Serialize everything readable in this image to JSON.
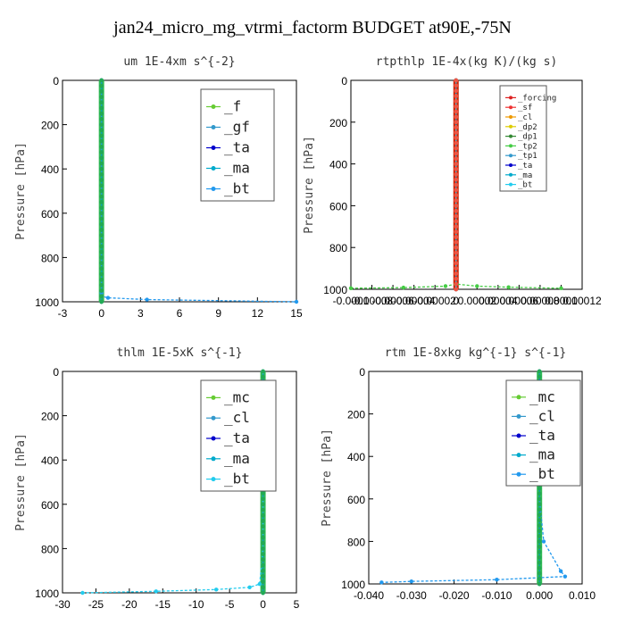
{
  "title": "jan24_micro_mg_vtrmi_factorm  BUDGET at90E,-75N",
  "chart_data": [
    {
      "type": "line",
      "title": "um  1E-4xm s^{-2}",
      "ylabel": "Pressure [hPa]",
      "xlim": [
        -3,
        15
      ],
      "ylim": [
        1000,
        0
      ],
      "xticks": [
        "-3",
        "0",
        "3",
        "6",
        "9",
        "12",
        "15"
      ],
      "xtick_values": [
        -3,
        0,
        3,
        6,
        9,
        12,
        15
      ],
      "yticks": [
        "0",
        "200",
        "400",
        "600",
        "800",
        "1000"
      ],
      "ytick_values": [
        0,
        200,
        400,
        600,
        800,
        1000
      ],
      "legend": {
        "placement": "top-right",
        "size": "large"
      },
      "series": [
        {
          "name": "_f",
          "color": "#66cc33",
          "x": [
            0,
            0,
            0,
            0,
            0,
            0
          ],
          "y": [
            0,
            200,
            400,
            600,
            800,
            1000
          ]
        },
        {
          "name": "_gf",
          "color": "#3399cc",
          "x": [
            0,
            0,
            0,
            0,
            0,
            0
          ],
          "y": [
            0,
            200,
            400,
            600,
            800,
            1000
          ]
        },
        {
          "name": "_ta",
          "color": "#0000cc",
          "x": [
            0,
            0,
            0,
            0,
            0,
            0
          ],
          "y": [
            0,
            200,
            400,
            600,
            800,
            1000
          ]
        },
        {
          "name": "_ma",
          "color": "#00aacc",
          "x": [
            0,
            0,
            0,
            0,
            0,
            0
          ],
          "y": [
            0,
            200,
            400,
            600,
            800,
            1000
          ]
        },
        {
          "name": "_bt",
          "color": "#2299ee",
          "x": [
            0,
            0,
            0,
            0,
            0,
            0,
            0,
            0.5,
            3.5,
            15
          ],
          "y": [
            0,
            200,
            400,
            600,
            800,
            960,
            975,
            982,
            990,
            1000
          ]
        }
      ],
      "green_column_x": 0
    },
    {
      "type": "line",
      "title": "rtpthlp  1E-4x(kg K)/(kg s)",
      "ylabel": "Pressure [hPa]",
      "xlim": [
        -0.0001,
        0.00012
      ],
      "ylim": [
        1000,
        0
      ],
      "xticks": [
        "-0.0001",
        "-0.00008",
        "-0.00006",
        "-0.00004",
        "-0.00002",
        "0",
        "0.00002",
        "0.00004",
        "0.00006",
        "0.00008",
        "0.0001",
        "0.00012"
      ],
      "xtick_values": [
        -0.0001,
        -8e-05,
        -6e-05,
        -4e-05,
        -2e-05,
        0,
        2e-05,
        4e-05,
        6e-05,
        8e-05,
        0.0001,
        0.00012
      ],
      "yticks": [
        "0",
        "200",
        "400",
        "600",
        "800",
        "1000"
      ],
      "ytick_values": [
        0,
        200,
        400,
        600,
        800,
        1000
      ],
      "legend": {
        "placement": "top-right",
        "size": "small"
      },
      "series": [
        {
          "name": "_forcing",
          "color": "#dd2222",
          "x": [
            0,
            0,
            0,
            0,
            0,
            0
          ],
          "y": [
            0,
            200,
            400,
            600,
            800,
            1000
          ]
        },
        {
          "name": "_sf",
          "color": "#ee3333",
          "x": [
            0,
            0,
            0,
            0,
            0,
            0
          ],
          "y": [
            0,
            200,
            400,
            600,
            800,
            1000
          ]
        },
        {
          "name": "_cl",
          "color": "#ee9900",
          "x": [
            0,
            0,
            0,
            0,
            0,
            0
          ],
          "y": [
            0,
            200,
            400,
            600,
            800,
            1000
          ]
        },
        {
          "name": "_dp2",
          "color": "#ddcc00",
          "x": [
            0,
            0,
            0,
            0,
            0,
            0
          ],
          "y": [
            0,
            200,
            400,
            600,
            800,
            1000
          ]
        },
        {
          "name": "_dp1",
          "color": "#338833",
          "x": [
            0,
            0,
            0,
            0,
            0,
            0
          ],
          "y": [
            0,
            200,
            400,
            600,
            800,
            1000
          ]
        },
        {
          "name": "_tp2",
          "color": "#44cc44",
          "x": [
            -0.0001,
            -5e-05,
            -1e-05,
            0,
            2e-05,
            5e-05,
            0.0001
          ],
          "y": [
            995,
            992,
            985,
            975,
            985,
            990,
            995
          ]
        },
        {
          "name": "_tp1",
          "color": "#3399cc",
          "x": [
            0,
            0,
            0,
            0,
            0,
            0
          ],
          "y": [
            0,
            200,
            400,
            600,
            800,
            1000
          ]
        },
        {
          "name": "_ta",
          "color": "#0000cc",
          "x": [
            0,
            0,
            0,
            0,
            0,
            0
          ],
          "y": [
            0,
            200,
            400,
            600,
            800,
            1000
          ]
        },
        {
          "name": "_ma",
          "color": "#00aacc",
          "x": [
            0,
            0,
            0,
            0,
            0,
            0
          ],
          "y": [
            0,
            200,
            400,
            600,
            800,
            1000
          ]
        },
        {
          "name": "_bt",
          "color": "#22ccee",
          "x": [
            0,
            0,
            0,
            0,
            0,
            0
          ],
          "y": [
            0,
            200,
            400,
            600,
            800,
            1000
          ]
        }
      ],
      "red_column_x": 0
    },
    {
      "type": "line",
      "title": "thlm  1E-5xK s^{-1}",
      "ylabel": "Pressure [hPa]",
      "xlim": [
        -30,
        5
      ],
      "ylim": [
        1000,
        0
      ],
      "xticks": [
        "-30",
        "-25",
        "-20",
        "-15",
        "-10",
        "-5",
        "0",
        "5"
      ],
      "xtick_values": [
        -30,
        -25,
        -20,
        -15,
        -10,
        -5,
        0,
        5
      ],
      "yticks": [
        "0",
        "200",
        "400",
        "600",
        "800",
        "1000"
      ],
      "ytick_values": [
        0,
        200,
        400,
        600,
        800,
        1000
      ],
      "legend": {
        "placement": "top-right",
        "size": "large"
      },
      "series": [
        {
          "name": "_mc",
          "color": "#66cc33",
          "x": [
            0,
            0,
            0,
            0,
            0,
            0
          ],
          "y": [
            0,
            200,
            400,
            600,
            800,
            1000
          ]
        },
        {
          "name": "_cl",
          "color": "#3399cc",
          "x": [
            0,
            0,
            0,
            0,
            0,
            0
          ],
          "y": [
            0,
            200,
            400,
            600,
            800,
            1000
          ]
        },
        {
          "name": "_ta",
          "color": "#0000cc",
          "x": [
            0,
            0,
            0,
            0,
            0,
            0
          ],
          "y": [
            0,
            200,
            400,
            600,
            800,
            1000
          ]
        },
        {
          "name": "_ma",
          "color": "#00aacc",
          "x": [
            0,
            0,
            0,
            0,
            0,
            0
          ],
          "y": [
            0,
            200,
            400,
            600,
            800,
            1000
          ]
        },
        {
          "name": "_bt",
          "color": "#22ccee",
          "x": [
            0,
            0,
            0,
            0,
            0,
            -0.5,
            -2,
            -7,
            -16,
            -27
          ],
          "y": [
            0,
            200,
            400,
            600,
            800,
            960,
            975,
            985,
            993,
            1000
          ]
        }
      ],
      "green_column_x": 0
    },
    {
      "type": "line",
      "title": "rtm  1E-8xkg kg^{-1} s^{-1}",
      "ylabel": "Pressure [hPa]",
      "xlim": [
        -0.04,
        0.01
      ],
      "ylim": [
        1000,
        0
      ],
      "xticks": [
        "-0.040",
        "-0.030",
        "-0.020",
        "-0.010",
        "0.000",
        "0.010"
      ],
      "xtick_values": [
        -0.04,
        -0.03,
        -0.02,
        -0.01,
        0,
        0.01
      ],
      "yticks": [
        "0",
        "200",
        "400",
        "600",
        "800",
        "1000"
      ],
      "ytick_values": [
        0,
        200,
        400,
        600,
        800,
        1000
      ],
      "legend": {
        "placement": "top-right",
        "size": "large"
      },
      "series": [
        {
          "name": "_mc",
          "color": "#66cc33",
          "x": [
            0,
            0,
            0,
            0,
            0,
            0
          ],
          "y": [
            0,
            200,
            400,
            600,
            800,
            1000
          ]
        },
        {
          "name": "_cl",
          "color": "#3399cc",
          "x": [
            0,
            0,
            0,
            0,
            0,
            0
          ],
          "y": [
            0,
            200,
            400,
            600,
            800,
            1000
          ]
        },
        {
          "name": "_ta",
          "color": "#0000cc",
          "x": [
            0,
            0,
            0,
            0,
            0,
            0
          ],
          "y": [
            0,
            200,
            400,
            600,
            800,
            1000
          ]
        },
        {
          "name": "_ma",
          "color": "#00aacc",
          "x": [
            0,
            0,
            0,
            0,
            0,
            0
          ],
          "y": [
            0,
            200,
            400,
            600,
            800,
            1000
          ]
        },
        {
          "name": "_bt",
          "color": "#2299ee",
          "x": [
            0,
            0,
            0,
            0,
            0.001,
            0.005,
            0.006,
            -0.01,
            -0.03,
            -0.037
          ],
          "y": [
            0,
            200,
            400,
            600,
            800,
            940,
            965,
            980,
            988,
            993
          ]
        }
      ],
      "green_column_x": 0
    }
  ]
}
